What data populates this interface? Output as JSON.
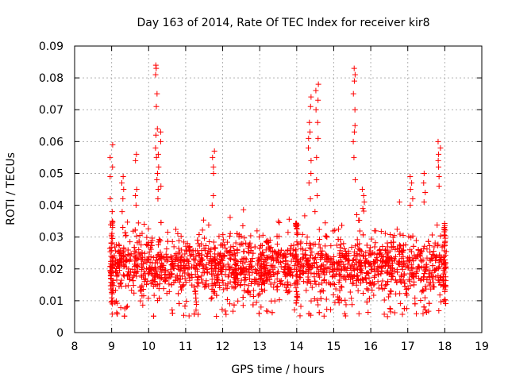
{
  "chart_data": {
    "type": "scatter",
    "title": "Day 163 of 2014, Rate Of TEC Index for receiver kir8",
    "xlabel": "GPS time / hours",
    "ylabel": "ROTI / TECUs",
    "xlim": [
      8,
      19
    ],
    "ylim": [
      0,
      0.09
    ],
    "grid": true,
    "marker": "plus",
    "color": "#ff0000",
    "x_ticks": [
      "8",
      "9",
      "10",
      "11",
      "12",
      "13",
      "14",
      "15",
      "16",
      "17",
      "18",
      "19"
    ],
    "y_ticks": [
      "0",
      "0.01",
      "0.02",
      "0.03",
      "0.04",
      "0.05",
      "0.06",
      "0.07",
      "0.08",
      "0.09"
    ],
    "data_window": [
      8.95,
      18.05
    ],
    "series": [
      {
        "name": "ROTI",
        "notes": "dense cloud of points between 0.005 and 0.035 TECU over 9-18 h",
        "base_range": [
          0.008,
          0.03
        ],
        "spikes": [
          {
            "x": 9.0,
            "values": [
              0.059,
              0.055,
              0.052,
              0.049,
              0.042,
              0.038,
              0.035,
              0.033
            ]
          },
          {
            "x": 9.3,
            "values": [
              0.049,
              0.047,
              0.045,
              0.042,
              0.038
            ]
          },
          {
            "x": 9.65,
            "values": [
              0.056,
              0.054,
              0.045,
              0.043,
              0.04
            ]
          },
          {
            "x": 10.22,
            "values": [
              0.084,
              0.083,
              0.081,
              0.075,
              0.071,
              0.064,
              0.062,
              0.058,
              0.055,
              0.05,
              0.048,
              0.045,
              0.042
            ]
          },
          {
            "x": 10.3,
            "values": [
              0.063,
              0.06,
              0.056,
              0.052,
              0.046
            ]
          },
          {
            "x": 11.75,
            "values": [
              0.057,
              0.055,
              0.052,
              0.05,
              0.043,
              0.04
            ]
          },
          {
            "x": 14.35,
            "values": [
              0.074,
              0.071,
              0.066,
              0.063,
              0.061,
              0.058,
              0.054,
              0.05,
              0.047,
              0.042
            ]
          },
          {
            "x": 14.55,
            "values": [
              0.078,
              0.076,
              0.073,
              0.07,
              0.066,
              0.061,
              0.055,
              0.048,
              0.043
            ]
          },
          {
            "x": 15.55,
            "values": [
              0.083,
              0.081,
              0.079,
              0.075,
              0.07,
              0.065,
              0.063,
              0.06,
              0.055,
              0.048
            ]
          },
          {
            "x": 15.8,
            "values": [
              0.045,
              0.043,
              0.041,
              0.039
            ]
          },
          {
            "x": 17.1,
            "values": [
              0.049,
              0.047,
              0.045,
              0.042,
              0.04
            ]
          },
          {
            "x": 17.45,
            "values": [
              0.05,
              0.047,
              0.044,
              0.041
            ]
          },
          {
            "x": 17.85,
            "values": [
              0.06,
              0.058,
              0.056,
              0.054,
              0.052,
              0.049,
              0.046
            ]
          }
        ]
      }
    ]
  }
}
